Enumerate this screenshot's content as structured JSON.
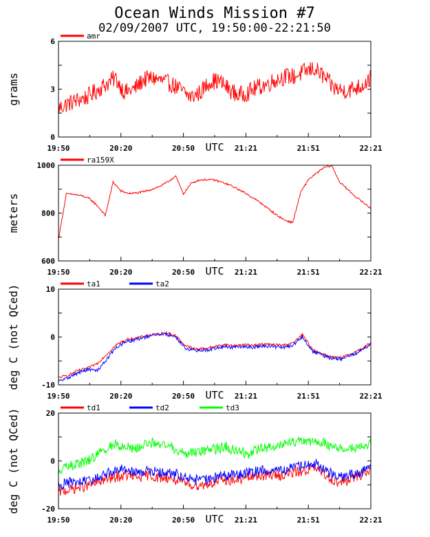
{
  "title": "Ocean Winds Mission #7",
  "subtitle": "02/09/2007  UTC, 19:50:00-22:21:50",
  "chart_data": [
    {
      "type": "line",
      "ylabel": "grams",
      "xlabel": "UTC",
      "ylim": [
        0,
        6
      ],
      "yticks": [
        "0",
        "3",
        "6"
      ],
      "xticks": [
        "19:50",
        "20:20",
        "20:50",
        "21:21",
        "21:51",
        "22:21"
      ],
      "series": [
        {
          "name": "amr",
          "color": "#ff0000",
          "noise": 0.55,
          "values": [
            1.8,
            2.1,
            2.3,
            2.5,
            2.9,
            3.3,
            3.7,
            2.8,
            3.0,
            3.6,
            3.7,
            3.5,
            3.3,
            2.9,
            2.5,
            2.8,
            3.5,
            3.5,
            3.0,
            2.6,
            2.8,
            3.1,
            3.3,
            3.6,
            3.8,
            3.8,
            4.1,
            4.3,
            3.8,
            3.1,
            2.9,
            3.0,
            3.2,
            3.7
          ]
        }
      ]
    },
    {
      "type": "line",
      "ylabel": "meters",
      "xlabel": "UTC",
      "ylim": [
        600,
        1000
      ],
      "yticks": [
        "600",
        "800",
        "1000"
      ],
      "xticks": [
        "19:50",
        "20:20",
        "20:50",
        "21:21",
        "21:51",
        "22:21"
      ],
      "series": [
        {
          "name": "ra159X",
          "color": "#ff0000",
          "noise": 4,
          "values": [
            690,
            880,
            878,
            872,
            860,
            830,
            790,
            930,
            892,
            882,
            884,
            890,
            900,
            912,
            930,
            955,
            880,
            925,
            938,
            940,
            938,
            928,
            916,
            900,
            882,
            862,
            840,
            815,
            790,
            770,
            760,
            885,
            940,
            965,
            990,
            998,
            930,
            900,
            870,
            845,
            820
          ]
        }
      ]
    },
    {
      "type": "line",
      "ylabel": "deg C (not QCed)",
      "xlabel": "UTC",
      "ylim": [
        -10,
        10
      ],
      "yticks": [
        "-10",
        "0",
        "10"
      ],
      "xticks": [
        "19:50",
        "20:20",
        "20:50",
        "21:21",
        "21:51",
        "22:21"
      ],
      "series": [
        {
          "name": "ta1",
          "color": "#ff0000",
          "noise": 0.25,
          "values": [
            -8.5,
            -8.0,
            -7.0,
            -6.5,
            -5.5,
            -3.5,
            -1.5,
            -0.5,
            -0.2,
            0.3,
            0.6,
            0.9,
            0.3,
            -1.8,
            -2.5,
            -2.4,
            -2.0,
            -1.6,
            -1.8,
            -1.6,
            -1.7,
            -1.5,
            -1.6,
            -1.7,
            -1.3,
            0.5,
            -2.5,
            -3.5,
            -4.2,
            -4.3,
            -3.5,
            -2.5,
            -1.2
          ]
        },
        {
          "name": "ta2",
          "color": "#0000ff",
          "noise": 0.35,
          "values": [
            -9.3,
            -8.5,
            -7.5,
            -6.8,
            -7.0,
            -4.5,
            -2.0,
            -1.0,
            -0.5,
            0.0,
            0.4,
            0.6,
            0.0,
            -2.3,
            -2.9,
            -2.8,
            -2.4,
            -2.0,
            -2.2,
            -2.0,
            -2.1,
            -1.9,
            -2.0,
            -2.2,
            -1.7,
            0.0,
            -2.9,
            -3.8,
            -4.5,
            -4.6,
            -3.8,
            -2.9,
            -1.4
          ]
        }
      ]
    },
    {
      "type": "line",
      "ylabel": "deg C (not QCed)",
      "xlabel": "UTC",
      "ylim": [
        -20,
        20
      ],
      "yticks": [
        "-20",
        "0",
        "20"
      ],
      "xticks": [
        "19:50",
        "20:20",
        "20:50",
        "21:21",
        "21:51",
        "22:21"
      ],
      "series": [
        {
          "name": "td1",
          "color": "#ff0000",
          "noise": 2.2,
          "values": [
            -13,
            -12,
            -11,
            -10,
            -8,
            -7,
            -6,
            -7,
            -6,
            -7,
            -7,
            -9,
            -10,
            -10,
            -9,
            -8,
            -8,
            -7,
            -6,
            -6,
            -6,
            -5,
            -4,
            -3,
            -6,
            -9,
            -8,
            -6,
            -4
          ]
        },
        {
          "name": "td2",
          "color": "#0000ff",
          "noise": 2.2,
          "values": [
            -10,
            -9,
            -9,
            -8,
            -6,
            -4,
            -3,
            -5,
            -4,
            -5,
            -5,
            -6,
            -8,
            -8,
            -7,
            -6,
            -6,
            -5,
            -4,
            -4,
            -4,
            -3,
            -2,
            -1,
            -4,
            -7,
            -6,
            -5,
            -3
          ]
        },
        {
          "name": "td3",
          "color": "#00ff00",
          "noise": 2.2,
          "values": [
            -4,
            -2,
            -1,
            1,
            4,
            7,
            6,
            5,
            8,
            7,
            6,
            4,
            3,
            4,
            5,
            6,
            4,
            3,
            5,
            6,
            7,
            8,
            8,
            9,
            7,
            5,
            5,
            6,
            7
          ]
        }
      ]
    }
  ]
}
